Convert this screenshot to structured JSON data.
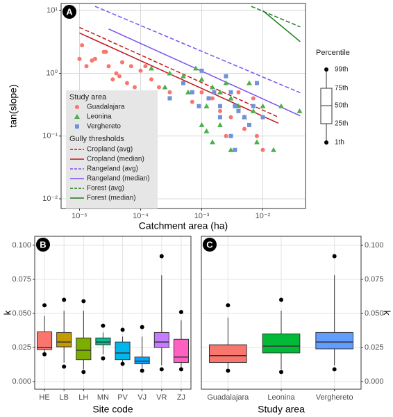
{
  "chart_data": [
    {
      "type": "scatter",
      "panel_label": "A",
      "xlabel": "Catchment area (ha)",
      "ylabel": "tan(slope)",
      "xlog": true,
      "ylog": true,
      "grid": true,
      "xlim": [
        5e-06,
        0.05
      ],
      "ylim": [
        0.007,
        13
      ],
      "xticks": [
        {
          "value": 1e-05,
          "label": "10⁻⁵"
        },
        {
          "value": 0.0001,
          "label": "10⁻⁴"
        },
        {
          "value": 0.001,
          "label": "10⁻³"
        },
        {
          "value": 0.01,
          "label": "10⁻²"
        }
      ],
      "yticks": [
        {
          "value": 0.01,
          "label": "10⁻²"
        },
        {
          "value": 0.1,
          "label": "10⁻¹"
        },
        {
          "value": 1,
          "label": "10⁰"
        },
        {
          "value": 10,
          "label": "10¹"
        }
      ],
      "legend_title": "Study area",
      "series": [
        {
          "name": "Guadalajara",
          "color": "#F8766D",
          "marker": "circle",
          "x": [
            1e-05,
            1.1e-05,
            1.3e-05,
            1.6e-05,
            1.8e-05,
            2.5e-05,
            2.7e-05,
            3e-05,
            3.5e-05,
            4e-05,
            4.5e-05,
            5e-05,
            6e-05,
            7e-05,
            8e-05,
            0.0001,
            0.00012,
            0.00015,
            0.0002,
            0.0003,
            0.0005,
            0.0007,
            0.001,
            0.0015,
            0.002,
            0.003,
            0.004,
            0.005,
            0.007,
            0.008,
            0.01,
            0.0025
          ],
          "values": [
            1.7,
            2.8,
            1.3,
            1.6,
            1.7,
            2.2,
            2.2,
            1.3,
            0.8,
            1.0,
            0.9,
            1.5,
            0.7,
            1.3,
            0.6,
            1.1,
            1.3,
            0.8,
            0.6,
            0.5,
            0.7,
            0.35,
            0.5,
            0.4,
            0.25,
            0.2,
            0.5,
            0.13,
            0.4,
            0.1,
            0.06,
            0.1
          ]
        },
        {
          "name": "Leonina",
          "color": "#4DAF4A",
          "marker": "triangle",
          "x": [
            0.00015,
            0.00025,
            0.0003,
            0.0005,
            0.0006,
            0.0008,
            0.001,
            0.0012,
            0.0015,
            0.002,
            0.0025,
            0.003,
            0.0012,
            0.0015,
            0.002,
            0.003,
            0.004,
            0.005,
            0.006,
            0.008,
            0.01,
            0.015,
            0.04,
            0.02,
            0.001,
            0.007
          ],
          "values": [
            1.2,
            0.6,
            1.0,
            0.9,
            0.5,
            1.2,
            0.8,
            0.3,
            0.6,
            0.5,
            0.7,
            0.4,
            0.12,
            0.08,
            0.15,
            0.06,
            0.3,
            0.2,
            0.7,
            0.08,
            0.3,
            0.06,
            0.25,
            0.3,
            0.15,
            0.25
          ]
        },
        {
          "name": "Verghereto",
          "color": "#6F93D6",
          "marker": "square",
          "x": [
            0.0003,
            0.0005,
            0.0007,
            0.0009,
            0.001,
            0.0013,
            0.0016,
            0.002,
            0.0025,
            0.003,
            0.0035,
            0.004,
            0.005,
            0.006,
            0.007,
            0.008,
            0.01,
            0.003,
            0.0035,
            0.002
          ],
          "values": [
            0.4,
            0.7,
            0.5,
            0.3,
            1.1,
            0.4,
            0.5,
            0.3,
            0.9,
            0.5,
            0.3,
            0.25,
            0.2,
            0.15,
            0.3,
            0.7,
            0.2,
            0.1,
            0.06,
            0.2
          ]
        }
      ],
      "threshold_legend_title": "Gully thresholds",
      "lines": [
        {
          "name": "Cropland (avg)",
          "color": "#C0161B",
          "dash": true,
          "x": [
            1e-05,
            0.018
          ],
          "values": [
            5.4,
            0.2
          ]
        },
        {
          "name": "Cropland (median)",
          "color": "#C0161B",
          "dash": false,
          "x": [
            1e-05,
            0.018
          ],
          "values": [
            4.4,
            0.16
          ]
        },
        {
          "name": "Rangeland (avg)",
          "color": "#7B4FF0",
          "dash": true,
          "x": [
            1.8e-05,
            0.041
          ],
          "values": [
            11.7,
            0.49
          ]
        },
        {
          "name": "Rangeland (median)",
          "color": "#7B4FF0",
          "dash": false,
          "x": [
            3e-05,
            0.041
          ],
          "values": [
            5.1,
            0.21
          ]
        },
        {
          "name": "Forest (avg)",
          "color": "#1A7A1A",
          "dash": true,
          "x": [
            0.0065,
            0.041
          ],
          "values": [
            11.7,
            5.5
          ]
        },
        {
          "name": "Forest (median)",
          "color": "#1A7A1A",
          "dash": false,
          "x": [
            0.01,
            0.041
          ],
          "values": [
            10,
            3.2
          ]
        }
      ],
      "percentile_legend": {
        "title": "Percentile",
        "labels": [
          "99th",
          "75th",
          "50th",
          "25th",
          "1th"
        ]
      }
    },
    {
      "type": "boxplot",
      "panel_label": "B",
      "xlabel": "Site code",
      "ylabel": "k",
      "yaxis_side": "left",
      "ylim": [
        -0.0056,
        0.1066
      ],
      "yticks": [
        {
          "value": 0,
          "label": "0.000"
        },
        0.025,
        {
          "value": 0.05,
          "label": "0.050"
        },
        0.075,
        {
          "value": 0.1,
          "label": "0.100"
        }
      ],
      "categories": [
        "HE",
        "LB",
        "LH",
        "MN",
        "PV",
        "VJ",
        "VR",
        "ZJ"
      ],
      "colors": [
        "#F8766D",
        "#C49A00",
        "#7CAE00",
        "#00C094",
        "#00B6EB",
        "#06A4FF",
        "#C77CFF",
        "#FF61C3"
      ],
      "boxes": [
        {
          "min": 0.02,
          "whisker_low": 0.021,
          "q1": 0.0235,
          "median": 0.025,
          "q3": 0.0365,
          "whisker_high": 0.048,
          "max": 0.056
        },
        {
          "min": 0.011,
          "whisker_low": 0.014,
          "q1": 0.0255,
          "median": 0.029,
          "q3": 0.036,
          "whisker_high": 0.052,
          "max": 0.06
        },
        {
          "min": 0.007,
          "whisker_low": 0.009,
          "q1": 0.016,
          "median": 0.023,
          "q3": 0.032,
          "whisker_high": 0.052,
          "max": 0.059
        },
        {
          "min": 0.017,
          "whisker_low": 0.02,
          "q1": 0.027,
          "median": 0.029,
          "q3": 0.032,
          "whisker_high": 0.036,
          "max": 0.041
        },
        {
          "min": 0.013,
          "whisker_low": 0.014,
          "q1": 0.016,
          "median": 0.021,
          "q3": 0.029,
          "whisker_high": 0.033,
          "max": 0.038
        },
        {
          "min": 0.008,
          "whisker_low": 0.01,
          "q1": 0.013,
          "median": 0.015,
          "q3": 0.018,
          "whisker_high": 0.033,
          "max": 0.04
        },
        {
          "min": 0.009,
          "whisker_low": 0.012,
          "q1": 0.025,
          "median": 0.029,
          "q3": 0.036,
          "whisker_high": 0.078,
          "max": 0.092
        },
        {
          "min": 0.009,
          "whisker_low": 0.01,
          "q1": 0.014,
          "median": 0.018,
          "q3": 0.031,
          "whisker_high": 0.045,
          "max": 0.051
        }
      ]
    },
    {
      "type": "boxplot",
      "panel_label": "C",
      "xlabel": "Study area",
      "ylabel": "k",
      "yaxis_side": "right",
      "ylim": [
        -0.0056,
        0.1066
      ],
      "yticks": [
        {
          "value": 0,
          "label": "0.000"
        },
        0.025,
        {
          "value": 0.05,
          "label": "0.050"
        },
        0.075,
        {
          "value": 0.1,
          "label": "0.100"
        }
      ],
      "categories": [
        "Guadalajara",
        "Leonina",
        "Verghereto"
      ],
      "colors": [
        "#F8766D",
        "#00BA38",
        "#619CFF"
      ],
      "boxes": [
        {
          "min": 0.008,
          "whisker_low": 0.01,
          "q1": 0.014,
          "median": 0.019,
          "q3": 0.027,
          "whisker_high": 0.047,
          "max": 0.056
        },
        {
          "min": 0.007,
          "whisker_low": 0.009,
          "q1": 0.021,
          "median": 0.026,
          "q3": 0.035,
          "whisker_high": 0.052,
          "max": 0.06
        },
        {
          "min": 0.009,
          "whisker_low": 0.012,
          "q1": 0.024,
          "median": 0.029,
          "q3": 0.036,
          "whisker_high": 0.078,
          "max": 0.092
        }
      ]
    }
  ]
}
